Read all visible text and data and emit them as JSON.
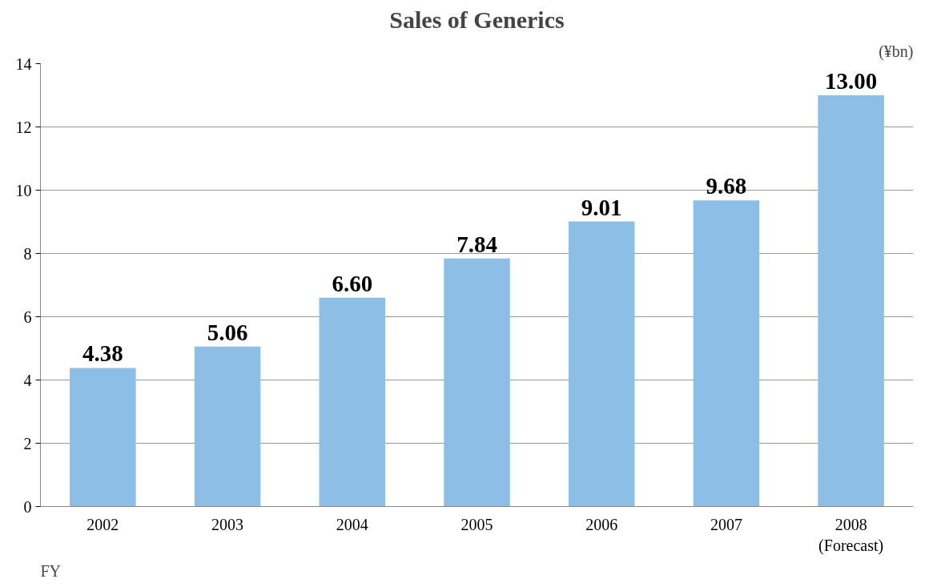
{
  "chart_data": {
    "type": "bar",
    "title": "Sales of Generics",
    "ylabel": "(¥bn)",
    "annotations": [
      "FY"
    ],
    "categories": [
      "2002",
      "2003",
      "2004",
      "2005",
      "2006",
      "2007",
      "2008\n(Forecast)"
    ],
    "values": [
      4.38,
      5.06,
      6.6,
      7.84,
      9.01,
      9.68,
      13.0
    ],
    "value_labels": [
      "4.38",
      "5.06",
      "6.60",
      "7.84",
      "9.01",
      "9.68",
      "13.00"
    ],
    "color": "#8dbfe6",
    "ylim": [
      0,
      14
    ],
    "yticks": [
      0,
      2,
      4,
      6,
      8,
      10,
      12,
      14
    ],
    "grid": "y"
  }
}
